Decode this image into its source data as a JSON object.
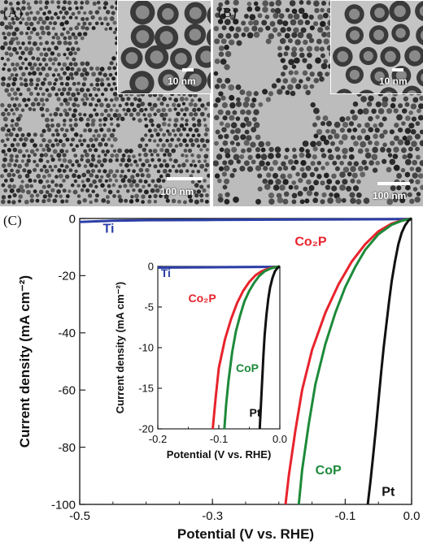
{
  "panels": {
    "a": {
      "label": "(A)",
      "scale_main": "100 nm",
      "scale_inset": "10 nm",
      "particle_size": "small"
    },
    "b": {
      "label": "(B)",
      "scale_main": "100 nm",
      "scale_inset": "10 nm",
      "particle_size": "large"
    },
    "c": {
      "label": "(C)"
    }
  },
  "chart_data": [
    {
      "type": "line",
      "xlabel": "Potential (V vs. RHE)",
      "ylabel": "Current density (mA cm⁻²)",
      "xlim": [
        -0.5,
        0.0
      ],
      "ylim": [
        -100,
        0
      ],
      "xticks": [
        "-0.5",
        "-0.3",
        "-0.1",
        "0.0"
      ],
      "xtick_values": [
        -0.5,
        -0.3,
        -0.1,
        0.0
      ],
      "yticks": [
        "0",
        "-20",
        "-40",
        "-60",
        "-80",
        "-100"
      ],
      "ytick_values": [
        0,
        -20,
        -40,
        -60,
        -80,
        -100
      ],
      "grid": false,
      "series": [
        {
          "name": "Ti",
          "color": "#2b3ea6",
          "x": [
            -0.5,
            -0.45,
            -0.4,
            -0.3,
            -0.2,
            -0.1,
            0.0
          ],
          "y": [
            -1.2,
            -0.8,
            -0.6,
            -0.5,
            -0.4,
            -0.3,
            -0.2
          ]
        },
        {
          "name": "Co2P",
          "color": "#e8232c",
          "x": [
            -0.19,
            -0.185,
            -0.175,
            -0.165,
            -0.15,
            -0.13,
            -0.11,
            -0.09,
            -0.07,
            -0.05,
            -0.03,
            -0.015,
            0.0
          ],
          "y": [
            -100,
            -90,
            -74,
            -60,
            -46,
            -33,
            -23,
            -15,
            -9,
            -4.5,
            -1.8,
            -0.7,
            0.0
          ]
        },
        {
          "name": "CoP",
          "color": "#1d8a3a",
          "x": [
            -0.17,
            -0.165,
            -0.155,
            -0.145,
            -0.13,
            -0.115,
            -0.1,
            -0.085,
            -0.07,
            -0.05,
            -0.03,
            -0.015,
            0.0
          ],
          "y": [
            -100,
            -88,
            -72,
            -58,
            -44,
            -33,
            -24,
            -17,
            -11,
            -5.5,
            -2.2,
            -0.8,
            0.0
          ]
        },
        {
          "name": "Pt",
          "color": "#111111",
          "x": [
            -0.066,
            -0.062,
            -0.058,
            -0.054,
            -0.05,
            -0.046,
            -0.042,
            -0.038,
            -0.034,
            -0.03,
            -0.025,
            -0.02,
            -0.015,
            -0.01,
            -0.005,
            0.0
          ],
          "y": [
            -100,
            -92,
            -83,
            -74,
            -64,
            -54,
            -45,
            -37,
            -29,
            -22,
            -15,
            -9,
            -5,
            -2.5,
            -0.8,
            0.0
          ]
        }
      ],
      "labels": [
        {
          "text": "Ti",
          "color": "#2b3ea6",
          "x": -0.465,
          "y": -5
        },
        {
          "text": "Co₂P",
          "color": "#e8232c",
          "x": -0.176,
          "y": -9.5
        },
        {
          "text": "CoP",
          "color": "#1d8a3a",
          "x": -0.145,
          "y": -89.5
        },
        {
          "text": "Pt",
          "color": "#111111",
          "x": -0.045,
          "y": -97
        }
      ]
    },
    {
      "type": "line",
      "xlabel": "Potential (V vs. RHE)",
      "ylabel": "Current density (mA cm⁻²)",
      "xlim": [
        -0.2,
        0.0
      ],
      "ylim": [
        -20,
        0
      ],
      "xticks": [
        "-0.2",
        "-0.1",
        "0.0"
      ],
      "xtick_values": [
        -0.2,
        -0.1,
        0.0
      ],
      "yticks": [
        "0",
        "-5",
        "-10",
        "-15",
        "-20"
      ],
      "ytick_values": [
        0,
        -5,
        -10,
        -15,
        -20
      ],
      "grid": false,
      "series": [
        {
          "name": "Ti",
          "color": "#2b3ea6",
          "x": [
            -0.2,
            -0.15,
            -0.1,
            -0.05,
            0.0
          ],
          "y": [
            -0.15,
            -0.12,
            -0.1,
            -0.08,
            -0.05
          ]
        },
        {
          "name": "Co2P",
          "color": "#e8232c",
          "x": [
            -0.11,
            -0.105,
            -0.1,
            -0.09,
            -0.08,
            -0.07,
            -0.06,
            -0.05,
            -0.04,
            -0.03,
            -0.02,
            -0.01,
            0.0
          ],
          "y": [
            -20,
            -16,
            -12.5,
            -9,
            -6.5,
            -4.5,
            -3,
            -1.9,
            -1.1,
            -0.6,
            -0.3,
            -0.1,
            0.0
          ]
        },
        {
          "name": "CoP",
          "color": "#1d8a3a",
          "x": [
            -0.091,
            -0.088,
            -0.084,
            -0.078,
            -0.072,
            -0.065,
            -0.058,
            -0.05,
            -0.042,
            -0.034,
            -0.025,
            -0.015,
            -0.005,
            0.0
          ],
          "y": [
            -20,
            -17,
            -14,
            -10.5,
            -8,
            -6,
            -4.3,
            -3,
            -2,
            -1.2,
            -0.6,
            -0.25,
            -0.05,
            0.0
          ]
        },
        {
          "name": "Pt",
          "color": "#111111",
          "x": [
            -0.033,
            -0.031,
            -0.029,
            -0.027,
            -0.025,
            -0.022,
            -0.019,
            -0.016,
            -0.012,
            -0.008,
            -0.004,
            0.0
          ],
          "y": [
            -20,
            -17,
            -14,
            -11,
            -8.5,
            -6,
            -4,
            -2.6,
            -1.4,
            -0.6,
            -0.2,
            0.0
          ]
        }
      ],
      "labels": [
        {
          "text": "Ti",
          "color": "#2b3ea6",
          "x": -0.195,
          "y": -1.3
        },
        {
          "text": "Co₂P",
          "color": "#e8232c",
          "x": -0.15,
          "y": -4.4
        },
        {
          "text": "CoP",
          "color": "#1d8a3a",
          "x": -0.072,
          "y": -13
        },
        {
          "text": "Pt",
          "color": "#111111",
          "x": -0.05,
          "y": -18.5
        }
      ]
    }
  ]
}
